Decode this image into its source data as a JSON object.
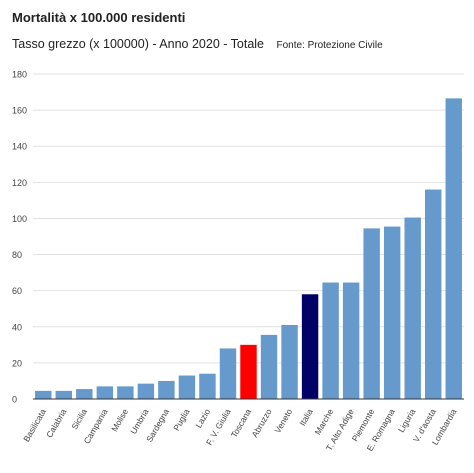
{
  "chart_data": {
    "type": "bar",
    "title": "Mortalità x 100.000 residenti",
    "subtitle": "Tasso grezzo (x 100000) - Anno 2020 - Totale",
    "source": "Fonte: Protezione Civile",
    "xlabel": "",
    "ylabel": "",
    "ylim": [
      0,
      180
    ],
    "yticks": [
      "0",
      "20",
      "40",
      "60",
      "80",
      "100",
      "120",
      "140",
      "160",
      "180"
    ],
    "grid": true,
    "legend": "none",
    "categories": [
      "Basilicata",
      "Calabria",
      "Sicilia",
      "Campania",
      "Molise",
      "Umbria",
      "Sardegna",
      "Puglia",
      "Lazio",
      "F. V. Giulia",
      "Toscana",
      "Abruzzo",
      "Veneto",
      "Italia",
      "Marche",
      "T. Alto Adige",
      "Piemonte",
      "E. Romagna",
      "Liguria",
      "V. d'aosta",
      "Lombardia"
    ],
    "values": [
      4.5,
      4.5,
      5.5,
      7,
      7,
      8.5,
      10,
      13,
      14,
      28,
      30,
      35.5,
      41,
      58,
      64.5,
      64.5,
      94.5,
      95.5,
      100.5,
      116,
      166.5
    ],
    "colors": {
      "default": "#6699cc",
      "highlight": "#ff0000",
      "national": "#000066",
      "grid": "#e2e2e2",
      "axis": "#333333",
      "text": "#444444"
    },
    "highlight_category": "Toscana",
    "national_category": "Italia"
  }
}
